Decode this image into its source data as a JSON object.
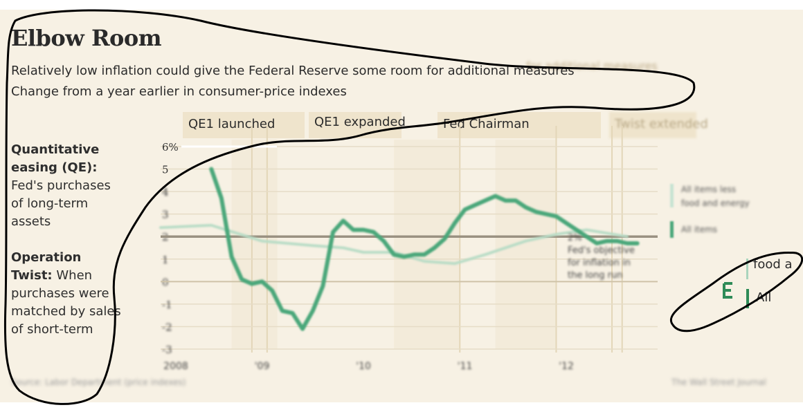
{
  "title": "Elbow Room",
  "subtitle_line1": "Relatively low inflation could give the Federal Reserve some room for additional measures",
  "subtitle_line2": "Change from a year earlier in consumer-price indexes",
  "sidebar": {
    "qe_term": "Quantitative easing (QE):",
    "qe_def": "Fed's purchases of long-term assets",
    "twist_term": "Operation Twist:",
    "twist_def": "When purchases were matched by sales of short-term"
  },
  "events": {
    "qe1_launched": "QE1 launched",
    "qe1_expanded": "QE1 expanded",
    "fed_chair": "Fed Chairman",
    "twist_extended": "Twist extended"
  },
  "legend": {
    "core": "All items less food and energy",
    "all": "All items",
    "core_visible": "food a",
    "all_visible": "All"
  },
  "annotation": "2% Fed's objective for inflation in the long run",
  "source": "Source: Labor Department (price indexes)",
  "credit": "The Wall Street Journal",
  "colors": {
    "all_items": "#4aa77a",
    "core": "#b9dcc6",
    "background": "#f7f1e4",
    "event_band": "#efe4cc"
  },
  "chart_data": {
    "type": "line",
    "title": "Elbow Room",
    "ylabel": "",
    "y_ticks": [
      "6%",
      "5",
      "4",
      "3",
      "2",
      "1",
      "0",
      "-1",
      "-2",
      "-3"
    ],
    "ylim": [
      -3,
      6
    ],
    "x_ticks": [
      "2008",
      "'09",
      "'10",
      "'11",
      "'12"
    ],
    "xlim": [
      2008.0,
      2012.9
    ],
    "reference_line": 2,
    "series": [
      {
        "name": "All items",
        "x": [
          2008.5,
          2008.6,
          2008.7,
          2008.8,
          2008.9,
          2009.0,
          2009.1,
          2009.2,
          2009.3,
          2009.4,
          2009.5,
          2009.6,
          2009.7,
          2009.8,
          2009.9,
          2010.0,
          2010.1,
          2010.2,
          2010.3,
          2010.4,
          2010.5,
          2010.6,
          2010.7,
          2010.8,
          2010.9,
          2011.0,
          2011.1,
          2011.2,
          2011.3,
          2011.4,
          2011.5,
          2011.6,
          2011.7,
          2011.8,
          2011.9,
          2012.0,
          2012.1,
          2012.2,
          2012.3,
          2012.4,
          2012.5,
          2012.6,
          2012.7
        ],
        "values": [
          5.0,
          3.7,
          1.1,
          0.1,
          -0.1,
          0.0,
          -0.4,
          -1.3,
          -1.4,
          -2.1,
          -1.3,
          -0.2,
          2.2,
          2.7,
          2.3,
          2.3,
          2.2,
          1.8,
          1.2,
          1.1,
          1.2,
          1.2,
          1.5,
          1.9,
          2.6,
          3.2,
          3.4,
          3.6,
          3.8,
          3.6,
          3.6,
          3.3,
          3.1,
          3.0,
          2.9,
          2.6,
          2.3,
          2.0,
          1.7,
          1.8,
          1.8,
          1.7,
          1.7
        ]
      },
      {
        "name": "All items less food and energy",
        "x": [
          2008.0,
          2008.5,
          2009.0,
          2009.5,
          2009.8,
          2010.0,
          2010.3,
          2010.6,
          2010.9,
          2011.2,
          2011.6,
          2011.9,
          2012.2,
          2012.6
        ],
        "values": [
          2.4,
          2.5,
          1.8,
          1.6,
          1.5,
          1.3,
          1.3,
          0.9,
          0.8,
          1.2,
          1.8,
          2.1,
          2.3,
          2.0
        ]
      }
    ]
  }
}
